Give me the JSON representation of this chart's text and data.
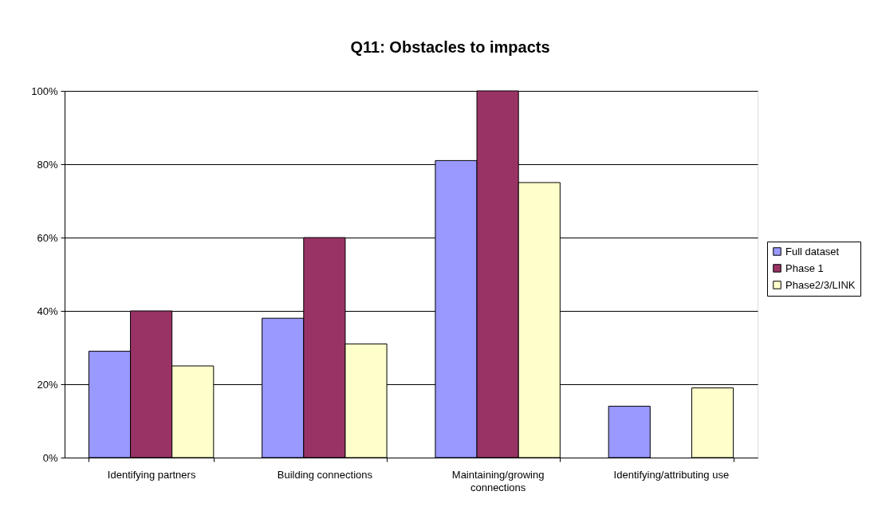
{
  "chart_data": {
    "type": "bar",
    "title": "Q11: Obstacles to impacts",
    "categories": [
      "Identifying partners",
      "Building connections",
      "Maintaining/growing connections",
      "Identifying/attributing use"
    ],
    "series": [
      {
        "name": "Full dataset",
        "color": "#9999ff",
        "values": [
          29,
          38,
          81,
          14
        ]
      },
      {
        "name": "Phase 1",
        "color": "#993366",
        "values": [
          40,
          60,
          100,
          null
        ]
      },
      {
        "name": "Phase2/3/LINK",
        "color": "#ffffcc",
        "values": [
          25,
          31,
          75,
          19
        ]
      }
    ],
    "ylim": [
      0,
      100
    ],
    "yticks": [
      {
        "value": 0,
        "label": "0%"
      },
      {
        "value": 20,
        "label": "20%"
      },
      {
        "value": 40,
        "label": "40%"
      },
      {
        "value": 60,
        "label": "60%"
      },
      {
        "value": 80,
        "label": "80%"
      },
      {
        "value": 100,
        "label": "100%"
      }
    ],
    "grid": "y",
    "legend": "right"
  }
}
